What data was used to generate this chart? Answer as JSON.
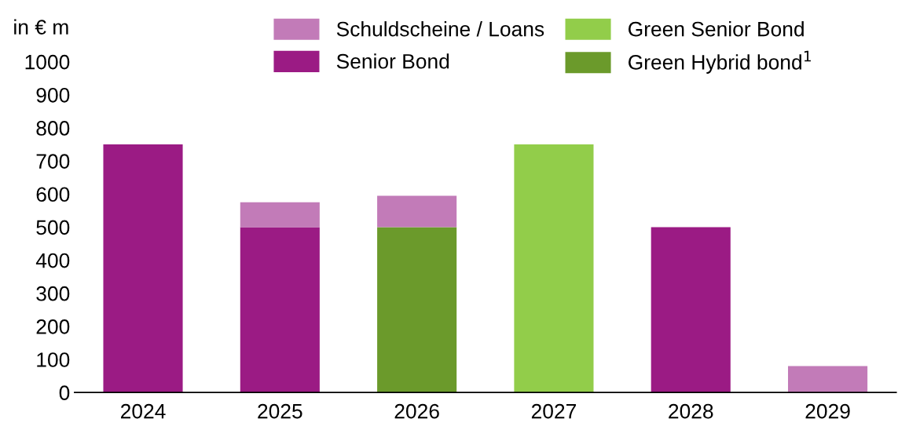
{
  "chart_data": {
    "type": "bar",
    "stacked": true,
    "ylabel": "in € m",
    "categories": [
      "2024",
      "2025",
      "2026",
      "2027",
      "2028",
      "2029"
    ],
    "series": [
      {
        "name": "Senior Bond",
        "color": "#9b1b84",
        "values": [
          750,
          500,
          0,
          0,
          500,
          0
        ]
      },
      {
        "name": "Green Hybrid bond$^{1}$",
        "color": "#6b9a2b",
        "values": [
          0,
          0,
          500,
          0,
          0,
          0
        ]
      },
      {
        "name": "Green Senior Bond",
        "color": "#92cd4a",
        "values": [
          0,
          0,
          0,
          750,
          0,
          0
        ]
      },
      {
        "name": "Schuldscheine / Loans",
        "color": "#c27bb8",
        "values": [
          0,
          75,
          95,
          0,
          0,
          80
        ]
      }
    ],
    "ylim": [
      0,
      1000
    ],
    "yticks": [
      0,
      100,
      200,
      300,
      400,
      500,
      600,
      700,
      800,
      900,
      1000
    ],
    "grid": false,
    "legend": "top"
  }
}
